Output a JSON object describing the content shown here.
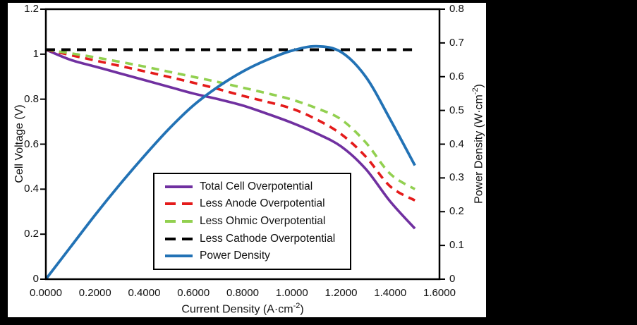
{
  "colors": {
    "canvas_bg": "#000000",
    "panel_bg": "#ffffff",
    "axis": "#000000",
    "text": "#111111"
  },
  "chart_data": {
    "type": "line",
    "title": "",
    "xlabel": {
      "pre": "Current Density (A·cm",
      "sup": "-2",
      "post": ")"
    },
    "ylabel_left": "Cell Voltage (V)",
    "ylabel_right": {
      "pre": "Power Density (W·cm",
      "sup": "-2",
      "post": ")"
    },
    "xlim": [
      0,
      1.6
    ],
    "ylim_left": [
      0,
      1.2
    ],
    "ylim_right": [
      0,
      0.8
    ],
    "grid": false,
    "legend_position": "inside-bottom-center",
    "x_ticks": [
      "0.0000",
      "0.2000",
      "0.4000",
      "0.6000",
      "0.8000",
      "1.0000",
      "1.2000",
      "1.4000",
      "1.6000"
    ],
    "y_ticks_left": [
      "0",
      "0.2",
      "0.4",
      "0.6",
      "0.8",
      "1",
      "1.2"
    ],
    "y_ticks_right": [
      "0",
      "0.1",
      "0.2",
      "0.3",
      "0.4",
      "0.5",
      "0.6",
      "0.7",
      "0.8"
    ],
    "x": [
      0,
      0.1,
      0.2,
      0.3,
      0.4,
      0.5,
      0.6,
      0.7,
      0.8,
      0.9,
      1.0,
      1.1,
      1.2,
      1.3,
      1.4,
      1.5
    ],
    "series": [
      {
        "name": "Total Cell Overpotential",
        "axis": "left",
        "color": "#7030A0",
        "style": "solid",
        "width": 3.6,
        "values": [
          1.02,
          0.975,
          0.945,
          0.915,
          0.885,
          0.855,
          0.825,
          0.8,
          0.772,
          0.735,
          0.695,
          0.648,
          0.59,
          0.49,
          0.345,
          0.225
        ]
      },
      {
        "name": "Less Anode Overpotential",
        "axis": "left",
        "color": "#E41B1B",
        "style": "dashed",
        "width": 3.6,
        "values": [
          1.02,
          0.996,
          0.972,
          0.948,
          0.924,
          0.899,
          0.873,
          0.845,
          0.815,
          0.788,
          0.758,
          0.71,
          0.645,
          0.545,
          0.412,
          0.35
        ]
      },
      {
        "name": "Less Ohmic Overpotential",
        "axis": "left",
        "color": "#92D050",
        "style": "dashed",
        "width": 3.6,
        "values": [
          1.02,
          1.004,
          0.986,
          0.966,
          0.945,
          0.922,
          0.899,
          0.876,
          0.851,
          0.826,
          0.798,
          0.76,
          0.71,
          0.608,
          0.468,
          0.4
        ]
      },
      {
        "name": "Less Cathode Overpotential",
        "axis": "left",
        "color": "#000000",
        "style": "dashed",
        "width": 4,
        "values": [
          1.02,
          1.02,
          1.02,
          1.02,
          1.02,
          1.02,
          1.02,
          1.02,
          1.02,
          1.02,
          1.02,
          1.02,
          1.02,
          1.02,
          1.02,
          1.02
        ]
      },
      {
        "name": "Power Density",
        "axis": "right",
        "color": "#2272B5",
        "style": "solid",
        "width": 3.8,
        "values": [
          0.0,
          0.095,
          0.19,
          0.28,
          0.365,
          0.445,
          0.515,
          0.57,
          0.615,
          0.65,
          0.677,
          0.69,
          0.673,
          0.6,
          0.473,
          0.337
        ]
      }
    ]
  }
}
